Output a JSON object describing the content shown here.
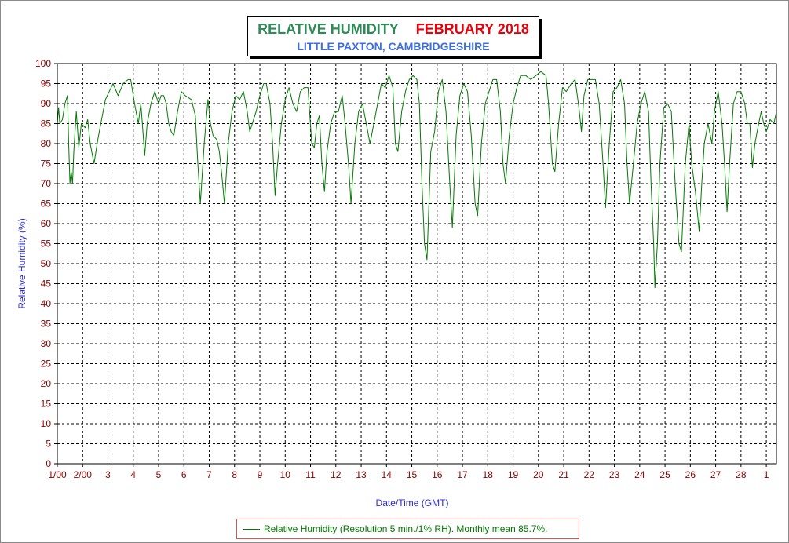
{
  "chart_data": {
    "type": "line",
    "title": "RELATIVE HUMIDITY",
    "title_date": "FEBRUARY 2018",
    "subtitle": "LITTLE PAXTON, CAMBRIDGESHIRE",
    "xlabel": "Date/Time (GMT)",
    "ylabel": "Relative Humidity (%)",
    "ylim": [
      0,
      100
    ],
    "xlim": [
      1,
      29.4
    ],
    "y_ticks": [
      0,
      5,
      10,
      15,
      20,
      25,
      30,
      35,
      40,
      45,
      50,
      55,
      60,
      65,
      70,
      75,
      80,
      85,
      90,
      95,
      100
    ],
    "x_ticks": [
      {
        "x": 1,
        "label": "1/00"
      },
      {
        "x": 2,
        "label": "2/00"
      },
      {
        "x": 3,
        "label": "3"
      },
      {
        "x": 4,
        "label": "4"
      },
      {
        "x": 5,
        "label": "5"
      },
      {
        "x": 6,
        "label": "6"
      },
      {
        "x": 7,
        "label": "7"
      },
      {
        "x": 8,
        "label": "8"
      },
      {
        "x": 9,
        "label": "9"
      },
      {
        "x": 10,
        "label": "10"
      },
      {
        "x": 11,
        "label": "11"
      },
      {
        "x": 12,
        "label": "12"
      },
      {
        "x": 13,
        "label": "13"
      },
      {
        "x": 14,
        "label": "14"
      },
      {
        "x": 15,
        "label": "15"
      },
      {
        "x": 16,
        "label": "16"
      },
      {
        "x": 17,
        "label": "17"
      },
      {
        "x": 18,
        "label": "18"
      },
      {
        "x": 19,
        "label": "19"
      },
      {
        "x": 20,
        "label": "20"
      },
      {
        "x": 21,
        "label": "21"
      },
      {
        "x": 22,
        "label": "22"
      },
      {
        "x": 23,
        "label": "23"
      },
      {
        "x": 24,
        "label": "24"
      },
      {
        "x": 25,
        "label": "25"
      },
      {
        "x": 26,
        "label": "26"
      },
      {
        "x": 27,
        "label": "27"
      },
      {
        "x": 28,
        "label": "28"
      },
      {
        "x": 29,
        "label": "1"
      }
    ],
    "grid": true,
    "line_color": "#007a00",
    "legend": "bottom-center",
    "series": [
      {
        "name": "Relative Humidity (Resolution 5 min./1% RH). Monthly mean 85.7%.",
        "points": [
          [
            1.0,
            85
          ],
          [
            1.05,
            89
          ],
          [
            1.1,
            85
          ],
          [
            1.2,
            86
          ],
          [
            1.3,
            90
          ],
          [
            1.4,
            92
          ],
          [
            1.45,
            80
          ],
          [
            1.5,
            70
          ],
          [
            1.55,
            73
          ],
          [
            1.6,
            70
          ],
          [
            1.65,
            78
          ],
          [
            1.75,
            88
          ],
          [
            1.85,
            79
          ],
          [
            1.95,
            85
          ],
          [
            2.1,
            84
          ],
          [
            2.2,
            86
          ],
          [
            2.3,
            80
          ],
          [
            2.45,
            75
          ],
          [
            2.6,
            81
          ],
          [
            2.75,
            86
          ],
          [
            2.9,
            91
          ],
          [
            3.05,
            93
          ],
          [
            3.2,
            95
          ],
          [
            3.4,
            92
          ],
          [
            3.6,
            95
          ],
          [
            3.8,
            96
          ],
          [
            3.9,
            96
          ],
          [
            4.05,
            90
          ],
          [
            4.2,
            85
          ],
          [
            4.3,
            90
          ],
          [
            4.45,
            77
          ],
          [
            4.55,
            85
          ],
          [
            4.7,
            90
          ],
          [
            4.85,
            93
          ],
          [
            5.0,
            90
          ],
          [
            5.1,
            92
          ],
          [
            5.2,
            92
          ],
          [
            5.3,
            90
          ],
          [
            5.4,
            85
          ],
          [
            5.5,
            83
          ],
          [
            5.6,
            82
          ],
          [
            5.75,
            88
          ],
          [
            5.9,
            93
          ],
          [
            6.05,
            92
          ],
          [
            6.3,
            91
          ],
          [
            6.45,
            87
          ],
          [
            6.55,
            75
          ],
          [
            6.65,
            65
          ],
          [
            6.8,
            80
          ],
          [
            6.95,
            91
          ],
          [
            7.05,
            85
          ],
          [
            7.15,
            82
          ],
          [
            7.3,
            81
          ],
          [
            7.4,
            78
          ],
          [
            7.5,
            72
          ],
          [
            7.6,
            65
          ],
          [
            7.75,
            80
          ],
          [
            7.9,
            88
          ],
          [
            8.05,
            92
          ],
          [
            8.2,
            91
          ],
          [
            8.35,
            93
          ],
          [
            8.5,
            88
          ],
          [
            8.6,
            83
          ],
          [
            8.7,
            85
          ],
          [
            8.85,
            88
          ],
          [
            9.0,
            92
          ],
          [
            9.15,
            95
          ],
          [
            9.25,
            95
          ],
          [
            9.4,
            90
          ],
          [
            9.5,
            80
          ],
          [
            9.6,
            67
          ],
          [
            9.7,
            75
          ],
          [
            9.85,
            85
          ],
          [
            10.0,
            91
          ],
          [
            10.15,
            94
          ],
          [
            10.3,
            90
          ],
          [
            10.45,
            88
          ],
          [
            10.6,
            93
          ],
          [
            10.75,
            94
          ],
          [
            10.9,
            94
          ],
          [
            11.05,
            80
          ],
          [
            11.15,
            79
          ],
          [
            11.25,
            85
          ],
          [
            11.35,
            87
          ],
          [
            11.45,
            75
          ],
          [
            11.55,
            68
          ],
          [
            11.65,
            78
          ],
          [
            11.8,
            85
          ],
          [
            11.95,
            88
          ],
          [
            12.1,
            88
          ],
          [
            12.25,
            92
          ],
          [
            12.35,
            86
          ],
          [
            12.5,
            75
          ],
          [
            12.6,
            65
          ],
          [
            12.75,
            80
          ],
          [
            12.9,
            88
          ],
          [
            13.05,
            90
          ],
          [
            13.2,
            85
          ],
          [
            13.35,
            80
          ],
          [
            13.5,
            85
          ],
          [
            13.65,
            90
          ],
          [
            13.8,
            95
          ],
          [
            13.95,
            94
          ],
          [
            14.1,
            97
          ],
          [
            14.25,
            94
          ],
          [
            14.35,
            80
          ],
          [
            14.45,
            78
          ],
          [
            14.6,
            88
          ],
          [
            14.75,
            93
          ],
          [
            14.9,
            96
          ],
          [
            15.05,
            97
          ],
          [
            15.2,
            96
          ],
          [
            15.3,
            90
          ],
          [
            15.4,
            70
          ],
          [
            15.5,
            55
          ],
          [
            15.6,
            51
          ],
          [
            15.75,
            78
          ],
          [
            15.9,
            83
          ],
          [
            16.05,
            93
          ],
          [
            16.2,
            96
          ],
          [
            16.35,
            88
          ],
          [
            16.5,
            70
          ],
          [
            16.6,
            59
          ],
          [
            16.75,
            82
          ],
          [
            16.9,
            92
          ],
          [
            17.05,
            95
          ],
          [
            17.2,
            93
          ],
          [
            17.35,
            82
          ],
          [
            17.5,
            65
          ],
          [
            17.6,
            62
          ],
          [
            17.75,
            80
          ],
          [
            17.9,
            90
          ],
          [
            18.05,
            93
          ],
          [
            18.2,
            96
          ],
          [
            18.35,
            96
          ],
          [
            18.5,
            88
          ],
          [
            18.6,
            75
          ],
          [
            18.7,
            70
          ],
          [
            18.85,
            82
          ],
          [
            19.0,
            90
          ],
          [
            19.15,
            94
          ],
          [
            19.3,
            97
          ],
          [
            19.5,
            97
          ],
          [
            19.7,
            96
          ],
          [
            19.9,
            97
          ],
          [
            20.1,
            98
          ],
          [
            20.3,
            97
          ],
          [
            20.4,
            90
          ],
          [
            20.55,
            75
          ],
          [
            20.65,
            73
          ],
          [
            20.8,
            85
          ],
          [
            20.95,
            94
          ],
          [
            21.1,
            93
          ],
          [
            21.3,
            95
          ],
          [
            21.45,
            96
          ],
          [
            21.6,
            89
          ],
          [
            21.7,
            83
          ],
          [
            21.8,
            92
          ],
          [
            21.95,
            96
          ],
          [
            22.1,
            96
          ],
          [
            22.25,
            96
          ],
          [
            22.4,
            90
          ],
          [
            22.55,
            75
          ],
          [
            22.65,
            64
          ],
          [
            22.8,
            80
          ],
          [
            22.95,
            93
          ],
          [
            23.1,
            94
          ],
          [
            23.25,
            96
          ],
          [
            23.4,
            90
          ],
          [
            23.5,
            75
          ],
          [
            23.6,
            65
          ],
          [
            23.75,
            75
          ],
          [
            23.9,
            85
          ],
          [
            24.05,
            90
          ],
          [
            24.2,
            93
          ],
          [
            24.35,
            88
          ],
          [
            24.45,
            70
          ],
          [
            24.55,
            55
          ],
          [
            24.6,
            44
          ],
          [
            24.7,
            55
          ],
          [
            24.8,
            75
          ],
          [
            24.95,
            89
          ],
          [
            25.1,
            90
          ],
          [
            25.25,
            88
          ],
          [
            25.4,
            70
          ],
          [
            25.55,
            55
          ],
          [
            25.65,
            53
          ],
          [
            25.8,
            75
          ],
          [
            25.95,
            85
          ],
          [
            26.05,
            75
          ],
          [
            26.2,
            68
          ],
          [
            26.35,
            58
          ],
          [
            26.45,
            70
          ],
          [
            26.55,
            80
          ],
          [
            26.7,
            85
          ],
          [
            26.85,
            80
          ],
          [
            26.95,
            88
          ],
          [
            27.1,
            93
          ],
          [
            27.25,
            85
          ],
          [
            27.35,
            75
          ],
          [
            27.45,
            63
          ],
          [
            27.55,
            75
          ],
          [
            27.7,
            90
          ],
          [
            27.85,
            93
          ],
          [
            28.0,
            93
          ],
          [
            28.15,
            90
          ],
          [
            28.25,
            85
          ],
          [
            28.35,
            85
          ],
          [
            28.45,
            74
          ],
          [
            28.55,
            80
          ],
          [
            28.7,
            85
          ],
          [
            28.8,
            88
          ],
          [
            28.9,
            85
          ],
          [
            29.0,
            83
          ],
          [
            29.15,
            86
          ],
          [
            29.3,
            85
          ],
          [
            29.4,
            88
          ]
        ]
      }
    ]
  }
}
